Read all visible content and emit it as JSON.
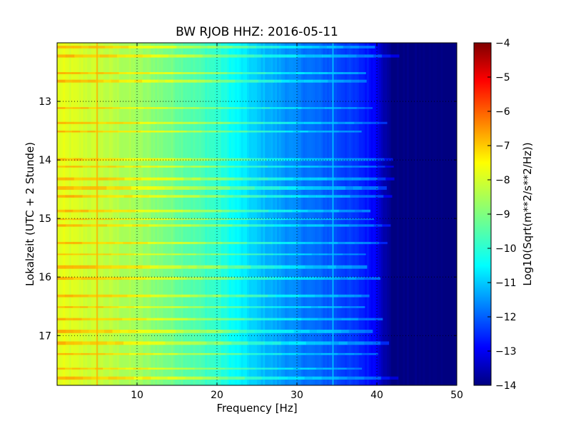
{
  "chart_data": {
    "type": "heatmap",
    "title": "BW RJOB HHZ: 2016-05-11",
    "xlabel": "Frequency [Hz]",
    "ylabel": "Lokalzeit (UTC + 2 Stunde)",
    "xlim": [
      0,
      50
    ],
    "ylim": [
      12.0,
      17.85
    ],
    "y_inverted": true,
    "x_ticks": [
      10,
      20,
      30,
      40,
      50
    ],
    "x_tick_labels": [
      "10",
      "20",
      "30",
      "40",
      "50"
    ],
    "y_ticks": [
      13,
      14,
      15,
      16,
      17
    ],
    "y_tick_labels": [
      "13",
      "14",
      "15",
      "16",
      "17"
    ],
    "grid": true,
    "colormap": "jet",
    "colorbar": {
      "label": "Log10(Sqrt(m**2/s**2/Hz))",
      "range": [
        -14,
        -4
      ],
      "ticks": [
        -4,
        -5,
        -6,
        -7,
        -8,
        -9,
        -10,
        -11,
        -12,
        -13,
        -14
      ],
      "tick_labels": [
        "−4",
        "−5",
        "−6",
        "−7",
        "−8",
        "−9",
        "−10",
        "−11",
        "−12",
        "−13",
        "−14"
      ]
    },
    "spectral_profile": {
      "frequency_hz": [
        0,
        5,
        10,
        15,
        20,
        25,
        30,
        35,
        38,
        40,
        41,
        42,
        50
      ],
      "value": [
        -8.0,
        -8.3,
        -8.7,
        -9.2,
        -9.8,
        -10.8,
        -11.5,
        -12.0,
        -12.4,
        -12.8,
        -13.6,
        -14.0,
        -14.0
      ]
    },
    "tonal_lines": [
      {
        "frequency_hz": 5.0,
        "value": -7.0
      },
      {
        "frequency_hz": 34.5,
        "value": -10.8
      }
    ],
    "noisy_bands_local_time": [
      12.05,
      12.2,
      12.5,
      12.63,
      13.1,
      13.35,
      13.5,
      13.97,
      14.1,
      14.3,
      14.45,
      14.6,
      14.85,
      15.0,
      15.1,
      15.4,
      15.6,
      15.8,
      16.0,
      16.3,
      16.5,
      16.7,
      16.9,
      17.1,
      17.3,
      17.55,
      17.7
    ]
  }
}
